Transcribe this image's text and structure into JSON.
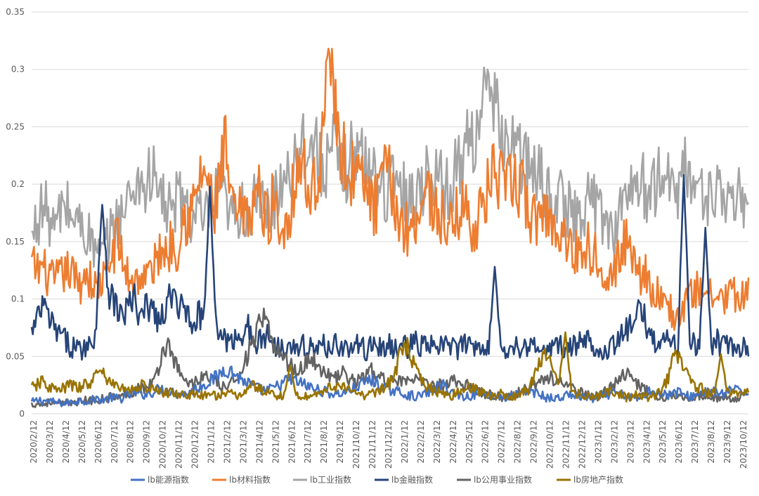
{
  "chart_data": {
    "type": "line",
    "title": "",
    "xlabel": "",
    "ylabel": "",
    "ylim": [
      0,
      0.35
    ],
    "yticks": [
      "0",
      "0.05",
      "0.1",
      "0.15",
      "0.2",
      "0.25",
      "0.3",
      "0.35"
    ],
    "xticks": [
      "2020/2/12",
      "2020/3/12",
      "2020/4/12",
      "2020/5/12",
      "2020/6/12",
      "2020/7/12",
      "2020/8/12",
      "2020/9/12",
      "2020/10/12",
      "2020/11/12",
      "2020/12/12",
      "2021/1/12",
      "2021/2/12",
      "2021/3/12",
      "2021/4/12",
      "2021/5/12",
      "2021/6/12",
      "2021/7/12",
      "2021/8/12",
      "2021/9/12",
      "2021/10/12",
      "2021/11/12",
      "2021/12/12",
      "2022/1/12",
      "2022/2/12",
      "2022/3/12",
      "2022/4/12",
      "2022/5/12",
      "2022/6/12",
      "2022/7/12",
      "2022/8/12",
      "2022/9/12",
      "2022/10/12",
      "2022/11/12",
      "2022/12/12",
      "2023/1/12",
      "2023/2/12",
      "2023/3/12",
      "2023/4/12",
      "2023/5/12",
      "2023/6/12",
      "2023/7/12",
      "2023/8/12",
      "2023/9/12",
      "2023/10/12"
    ],
    "grid": true,
    "legend_position": "bottom",
    "series": [
      {
        "name": "lb能源指数",
        "color": "#4472c4",
        "values": [
          0.01,
          0.012,
          0.011,
          0.01,
          0.009,
          0.01,
          0.012,
          0.011,
          0.013,
          0.012,
          0.014,
          0.013,
          0.016,
          0.018,
          0.017,
          0.019,
          0.022,
          0.02,
          0.018,
          0.017,
          0.02,
          0.024,
          0.028,
          0.032,
          0.04,
          0.036,
          0.03,
          0.026,
          0.022,
          0.02,
          0.022,
          0.026,
          0.03,
          0.028,
          0.025,
          0.022,
          0.02,
          0.018,
          0.017,
          0.019,
          0.022,
          0.026,
          0.03,
          0.026,
          0.022,
          0.02,
          0.018,
          0.016,
          0.015,
          0.018,
          0.022,
          0.025,
          0.02,
          0.016,
          0.015,
          0.017,
          0.019,
          0.016,
          0.015,
          0.014,
          0.016,
          0.018,
          0.02,
          0.017,
          0.014,
          0.013,
          0.015,
          0.017,
          0.015,
          0.014,
          0.013,
          0.015,
          0.018,
          0.017,
          0.015,
          0.013,
          0.016,
          0.022,
          0.018,
          0.016,
          0.02,
          0.016,
          0.015,
          0.018,
          0.02,
          0.018,
          0.017,
          0.022,
          0.018,
          0.02
        ],
        "peaks": []
      },
      {
        "name": "lb材料指数",
        "color": "#ed7d31",
        "values": [
          0.13,
          0.125,
          0.128,
          0.12,
          0.115,
          0.118,
          0.122,
          0.125,
          0.118,
          0.112,
          0.125,
          0.115,
          0.108,
          0.115,
          0.12,
          0.14,
          0.155,
          0.128,
          0.12,
          0.115,
          0.12,
          0.118,
          0.124,
          0.13,
          0.145,
          0.14,
          0.15,
          0.145,
          0.175,
          0.17,
          0.18,
          0.2,
          0.215,
          0.19,
          0.175,
          0.21,
          0.23,
          0.18,
          0.17,
          0.175,
          0.165,
          0.185,
          0.195,
          0.175,
          0.17,
          0.19,
          0.16,
          0.165,
          0.18,
          0.21,
          0.225,
          0.2,
          0.19,
          0.21,
          0.24,
          0.265,
          0.285,
          0.245,
          0.22,
          0.205,
          0.215,
          0.2,
          0.195,
          0.185,
          0.18,
          0.205,
          0.21,
          0.195,
          0.17,
          0.165,
          0.16,
          0.17,
          0.18,
          0.195,
          0.19,
          0.175,
          0.17,
          0.165,
          0.16,
          0.175,
          0.185,
          0.17,
          0.165,
          0.17,
          0.185,
          0.2,
          0.215,
          0.2,
          0.19,
          0.205,
          0.2,
          0.195,
          0.18,
          0.165,
          0.175,
          0.18,
          0.17,
          0.16,
          0.165,
          0.15,
          0.145,
          0.14,
          0.145,
          0.15,
          0.135,
          0.14,
          0.13,
          0.125,
          0.12,
          0.135,
          0.15,
          0.145,
          0.14,
          0.12,
          0.125,
          0.11,
          0.105,
          0.095,
          0.1,
          0.085,
          0.08,
          0.095,
          0.1,
          0.105,
          0.11,
          0.115,
          0.1,
          0.095,
          0.105,
          0.1,
          0.11,
          0.095,
          0.1,
          0.105
        ],
        "peaks": [
          {
            "i": 55,
            "v": 0.318
          }
        ]
      },
      {
        "name": "lb工业指数",
        "color": "#a5a5a5",
        "values": [
          0.15,
          0.17,
          0.18,
          0.175,
          0.16,
          0.17,
          0.185,
          0.175,
          0.17,
          0.165,
          0.16,
          0.15,
          0.14,
          0.135,
          0.15,
          0.16,
          0.17,
          0.175,
          0.185,
          0.2,
          0.205,
          0.195,
          0.21,
          0.2,
          0.19,
          0.18,
          0.175,
          0.185,
          0.19,
          0.175,
          0.17,
          0.175,
          0.165,
          0.175,
          0.185,
          0.195,
          0.18,
          0.17,
          0.175,
          0.18,
          0.175,
          0.18,
          0.185,
          0.18,
          0.175,
          0.185,
          0.2,
          0.21,
          0.215,
          0.225,
          0.235,
          0.24,
          0.235,
          0.225,
          0.215,
          0.22,
          0.23,
          0.215,
          0.21,
          0.225,
          0.23,
          0.225,
          0.215,
          0.21,
          0.205,
          0.2,
          0.195,
          0.2,
          0.21,
          0.195,
          0.185,
          0.19,
          0.2,
          0.205,
          0.21,
          0.215,
          0.2,
          0.195,
          0.2,
          0.215,
          0.225,
          0.235,
          0.245,
          0.26,
          0.275,
          0.27,
          0.26,
          0.25,
          0.24,
          0.235,
          0.23,
          0.22,
          0.215,
          0.21,
          0.205,
          0.2,
          0.195,
          0.19,
          0.185,
          0.18,
          0.175,
          0.17,
          0.175,
          0.185,
          0.19,
          0.18,
          0.17,
          0.165,
          0.16,
          0.175,
          0.185,
          0.195,
          0.205,
          0.2,
          0.195,
          0.19,
          0.2,
          0.21,
          0.205,
          0.195,
          0.2,
          0.21,
          0.215,
          0.2,
          0.19,
          0.185,
          0.195,
          0.2,
          0.19,
          0.18,
          0.175,
          0.185,
          0.19,
          0.18
        ],
        "peaks": []
      },
      {
        "name": "lb金融指数",
        "color": "#264478",
        "values": [
          0.07,
          0.08,
          0.095,
          0.085,
          0.075,
          0.07,
          0.065,
          0.06,
          0.058,
          0.055,
          0.06,
          0.06,
          0.075,
          0.12,
          0.11,
          0.1,
          0.09,
          0.085,
          0.095,
          0.1,
          0.08,
          0.09,
          0.095,
          0.085,
          0.08,
          0.09,
          0.11,
          0.085,
          0.095,
          0.09,
          0.08,
          0.085,
          0.09,
          0.08,
          0.075,
          0.07,
          0.065,
          0.06,
          0.068,
          0.07,
          0.08,
          0.06,
          0.062,
          0.065,
          0.07,
          0.06,
          0.058,
          0.06,
          0.065,
          0.055,
          0.058,
          0.06,
          0.058,
          0.055,
          0.06,
          0.058,
          0.062,
          0.06,
          0.058,
          0.055,
          0.06,
          0.058,
          0.055,
          0.06,
          0.062,
          0.055,
          0.06,
          0.058,
          0.055,
          0.06,
          0.058,
          0.062,
          0.06,
          0.058,
          0.06,
          0.055,
          0.06,
          0.058,
          0.062,
          0.055,
          0.06,
          0.058,
          0.06,
          0.062,
          0.058,
          0.06,
          0.055,
          0.06,
          0.058,
          0.055,
          0.06,
          0.058,
          0.055,
          0.06,
          0.058,
          0.056,
          0.055,
          0.058,
          0.06,
          0.055,
          0.058,
          0.06,
          0.062,
          0.065,
          0.06,
          0.058,
          0.055,
          0.058,
          0.06,
          0.065,
          0.07,
          0.075,
          0.08,
          0.09,
          0.08,
          0.07,
          0.06,
          0.065,
          0.07,
          0.06,
          0.058,
          0.06,
          0.065,
          0.06,
          0.058,
          0.055,
          0.06,
          0.065,
          0.058,
          0.06,
          0.055,
          0.058,
          0.06,
          0.055
        ],
        "peaks": [
          {
            "i": 13,
            "v": 0.182
          },
          {
            "i": 33,
            "v": 0.198
          },
          {
            "i": 86,
            "v": 0.128
          },
          {
            "i": 121,
            "v": 0.208
          },
          {
            "i": 125,
            "v": 0.162
          }
        ]
      },
      {
        "name": "lb公用事业指数",
        "color": "#636363",
        "values": [
          0.008,
          0.009,
          0.008,
          0.01,
          0.009,
          0.008,
          0.009,
          0.01,
          0.011,
          0.01,
          0.012,
          0.011,
          0.012,
          0.013,
          0.014,
          0.015,
          0.014,
          0.016,
          0.018,
          0.02,
          0.024,
          0.022,
          0.026,
          0.03,
          0.05,
          0.06,
          0.055,
          0.04,
          0.03,
          0.028,
          0.026,
          0.03,
          0.034,
          0.03,
          0.028,
          0.024,
          0.022,
          0.026,
          0.032,
          0.04,
          0.05,
          0.06,
          0.075,
          0.08,
          0.07,
          0.06,
          0.055,
          0.048,
          0.042,
          0.038,
          0.04,
          0.045,
          0.05,
          0.042,
          0.038,
          0.035,
          0.03,
          0.032,
          0.036,
          0.03,
          0.028,
          0.03,
          0.034,
          0.038,
          0.032,
          0.03,
          0.028,
          0.032,
          0.03,
          0.028,
          0.026,
          0.028,
          0.03,
          0.028,
          0.026,
          0.024,
          0.026,
          0.028,
          0.03,
          0.028,
          0.026,
          0.024,
          0.022,
          0.02,
          0.018,
          0.017,
          0.016,
          0.015,
          0.014,
          0.016,
          0.018,
          0.02,
          0.022,
          0.025,
          0.028,
          0.03,
          0.032,
          0.03,
          0.028,
          0.025,
          0.022,
          0.02,
          0.018,
          0.017,
          0.016,
          0.015,
          0.018,
          0.022,
          0.025,
          0.03,
          0.035,
          0.032,
          0.028,
          0.025,
          0.02,
          0.018,
          0.016,
          0.014,
          0.015,
          0.016,
          0.018,
          0.016,
          0.015,
          0.014,
          0.016,
          0.015,
          0.014,
          0.013,
          0.014,
          0.015,
          0.013,
          0.014,
          0.015,
          0.014
        ],
        "peaks": []
      },
      {
        "name": "lb房地产指数",
        "color": "#997300",
        "values": [
          0.022,
          0.025,
          0.028,
          0.024,
          0.022,
          0.02,
          0.022,
          0.025,
          0.024,
          0.022,
          0.026,
          0.024,
          0.03,
          0.035,
          0.03,
          0.026,
          0.024,
          0.022,
          0.02,
          0.022,
          0.025,
          0.024,
          0.022,
          0.02,
          0.018,
          0.019,
          0.018,
          0.017,
          0.018,
          0.016,
          0.017,
          0.015,
          0.016,
          0.015,
          0.016,
          0.018,
          0.016,
          0.017,
          0.016,
          0.018,
          0.02,
          0.025,
          0.022,
          0.02,
          0.018,
          0.017,
          0.016,
          0.015,
          0.016,
          0.017,
          0.016,
          0.015,
          0.016,
          0.018,
          0.02,
          0.022,
          0.025,
          0.024,
          0.022,
          0.02,
          0.018,
          0.017,
          0.016,
          0.018,
          0.02,
          0.022,
          0.025,
          0.03,
          0.045,
          0.06,
          0.055,
          0.04,
          0.03,
          0.025,
          0.022,
          0.02,
          0.018,
          0.017,
          0.016,
          0.018,
          0.02,
          0.022,
          0.025,
          0.02,
          0.018,
          0.016,
          0.015,
          0.017,
          0.016,
          0.015,
          0.016,
          0.018,
          0.02,
          0.03,
          0.04,
          0.05,
          0.045,
          0.035,
          0.03,
          0.025,
          0.02,
          0.018,
          0.017,
          0.016,
          0.015,
          0.016,
          0.018,
          0.02,
          0.018,
          0.016,
          0.015,
          0.014,
          0.016,
          0.015,
          0.014,
          0.016,
          0.018,
          0.022,
          0.03,
          0.045,
          0.05,
          0.04,
          0.03,
          0.025,
          0.022,
          0.02,
          0.018,
          0.02,
          0.022,
          0.02,
          0.018,
          0.016,
          0.017,
          0.018
        ],
        "peaks": [
          {
            "i": 12,
            "v": 0.038
          },
          {
            "i": 48,
            "v": 0.042
          },
          {
            "i": 99,
            "v": 0.071
          },
          {
            "i": 128,
            "v": 0.052
          }
        ]
      }
    ]
  }
}
